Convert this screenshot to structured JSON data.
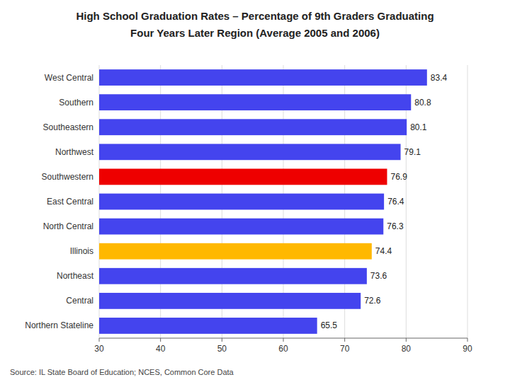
{
  "chart_data": {
    "type": "bar",
    "orientation": "horizontal",
    "title": "High School Graduation Rates – Percentage of 9th Graders Graduating",
    "subtitle": "Four Years Later Region (Average 2005 and 2006)",
    "annotations": [
      "Source: IL State Board of Education; NCES, Common Core Data"
    ],
    "categories": [
      "West Central",
      "Southern",
      "Southeastern",
      "Northwest",
      "Southwestern",
      "East Central",
      "North Central",
      "Illinois",
      "Northeast",
      "Central",
      "Northern Stateline"
    ],
    "values": [
      83.4,
      80.8,
      80.1,
      79.1,
      76.9,
      76.4,
      76.3,
      74.4,
      73.6,
      72.6,
      65.5
    ],
    "colors": [
      "#4444EE",
      "#4444EE",
      "#4444EE",
      "#4444EE",
      "#EE0000",
      "#4444EE",
      "#4444EE",
      "#FFB800",
      "#4444EE",
      "#4444EE",
      "#4444EE"
    ],
    "xlim": [
      30,
      90
    ],
    "xticks": [
      30,
      40,
      50,
      60,
      70,
      80,
      90
    ],
    "grid": true,
    "data_labels": true
  }
}
